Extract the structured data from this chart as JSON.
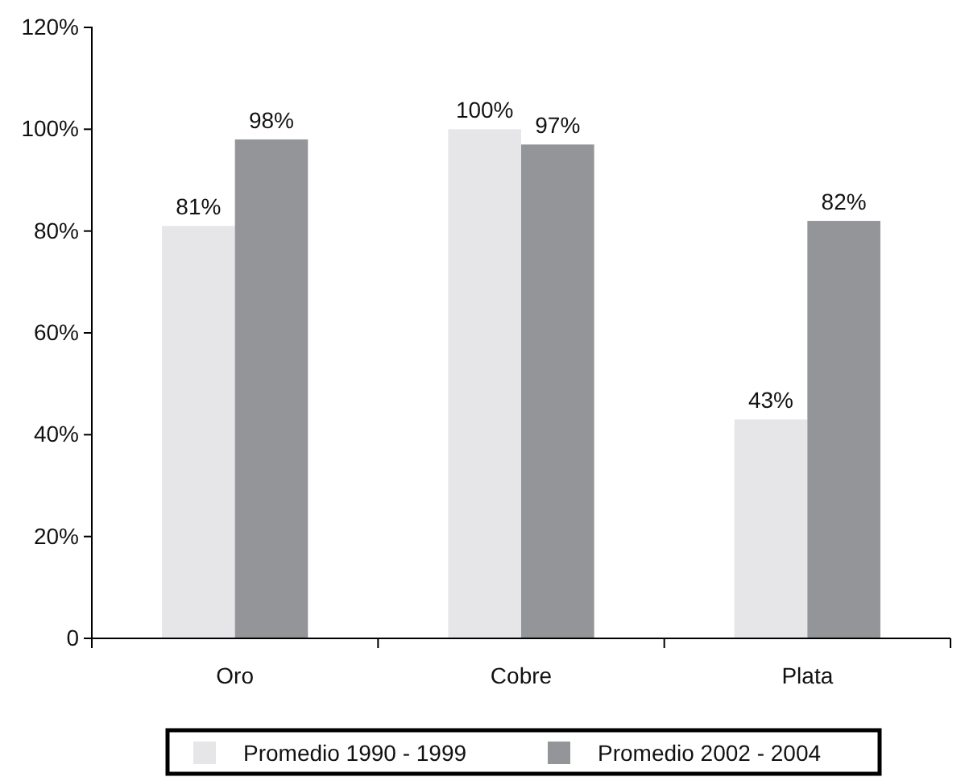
{
  "chart_data": {
    "type": "bar",
    "categories": [
      "Oro",
      "Cobre",
      "Plata"
    ],
    "series": [
      {
        "name": "Promedio 1990 - 1999",
        "color": "#e6e6e8",
        "values": [
          81,
          100,
          43
        ],
        "value_labels": [
          "81%",
          "100%",
          "43%"
        ]
      },
      {
        "name": "Promedio 2002 - 2004",
        "color": "#939598",
        "values": [
          98,
          97,
          82
        ],
        "value_labels": [
          "98%",
          "97%",
          "82%"
        ]
      }
    ],
    "ylim": [
      0,
      120
    ],
    "yticks": [
      {
        "value": 0,
        "label": "0"
      },
      {
        "value": 20,
        "label": "20%"
      },
      {
        "value": 40,
        "label": "40%"
      },
      {
        "value": 60,
        "label": "60%"
      },
      {
        "value": 80,
        "label": "80%"
      },
      {
        "value": 100,
        "label": "100%"
      },
      {
        "value": 120,
        "label": "120%"
      }
    ],
    "grid": false,
    "legend": "bottom"
  }
}
